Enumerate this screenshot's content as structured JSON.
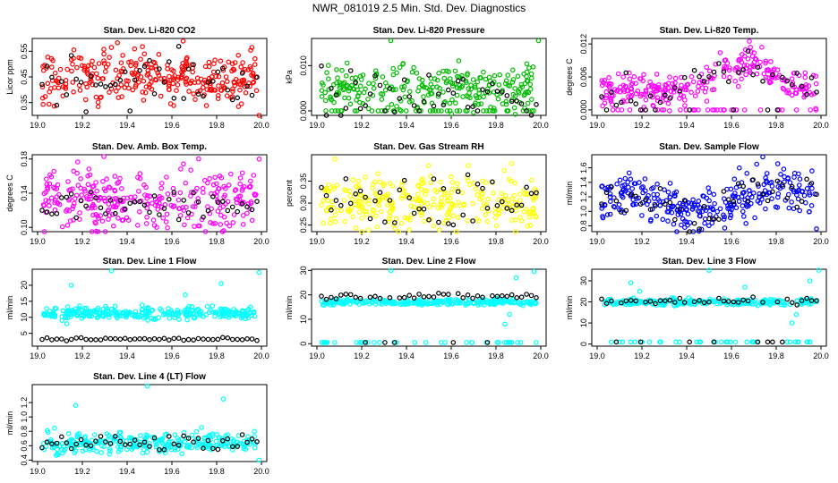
{
  "title": "NWR_081019  2.5 Min. Std. Dev. Diagnostics",
  "chart_data": [
    {
      "type": "scatter",
      "title": "Stan. Dev. Li-820 CO2",
      "ylabel": "Licor ppm",
      "color": "#ff0000",
      "xlim": [
        19.0,
        20.0
      ],
      "ylim": [
        0.3,
        0.6
      ],
      "xticks": [
        "19.0",
        "19.2",
        "19.4",
        "19.6",
        "19.8",
        "20.0"
      ],
      "yticks": [
        "0.35",
        "0.45",
        "0.55"
      ],
      "yticks_at": [
        0.35,
        0.45,
        0.55
      ],
      "center": 0.45,
      "spread": 0.05,
      "black_center": 0.44,
      "black_spread": 0.05,
      "trend": 0,
      "extreme_low": false,
      "outliers": [
        [
          19.65,
          0.59
        ],
        [
          19.99,
          0.3
        ]
      ]
    },
    {
      "type": "scatter",
      "title": "Stan. Dev. Li-820 Pressure",
      "ylabel": "kPa",
      "color": "#00bb00",
      "xlim": [
        19.0,
        20.0
      ],
      "ylim": [
        -0.001,
        0.016
      ],
      "xticks": [
        "19.0",
        "19.2",
        "19.4",
        "19.6",
        "19.8",
        "20.0"
      ],
      "yticks": [
        "0.000",
        "0.010"
      ],
      "yticks_at": [
        0.0,
        0.01
      ],
      "center": 0.005,
      "spread": 0.0025,
      "black_center": 0.003,
      "black_spread": 0.003,
      "trend": 0,
      "extreme_low": true,
      "low_value": 0.0,
      "outliers": [
        [
          19.33,
          0.0155
        ],
        [
          19.99,
          0.0155
        ]
      ]
    },
    {
      "type": "scatter",
      "title": "Stan. Dev. Li-820 Temp.",
      "ylabel": "degrees C",
      "color": "#ff00ff",
      "xlim": [
        19.0,
        20.0
      ],
      "ylim": [
        -0.001,
        0.013
      ],
      "xticks": [
        "19.0",
        "19.2",
        "19.4",
        "19.6",
        "19.8",
        "20.0"
      ],
      "yticks": [
        "0.000",
        "0.006",
        "0.012"
      ],
      "yticks_at": [
        0.0,
        0.006,
        0.012
      ],
      "center": 0.005,
      "spread": 0.0015,
      "black_center": 0.005,
      "black_spread": 0.0015,
      "trend": "hump",
      "extreme_low": true,
      "low_value": 0.0,
      "outliers": [
        [
          19.68,
          0.0125
        ]
      ]
    },
    {
      "type": "scatter",
      "title": "Stan. Dev. Amb. Box Temp.",
      "ylabel": "degrees C",
      "color": "#ff00ff",
      "xlim": [
        19.0,
        20.0
      ],
      "ylim": [
        0.095,
        0.185
      ],
      "xticks": [
        "19.0",
        "19.2",
        "19.4",
        "19.6",
        "19.8",
        "20.0"
      ],
      "yticks": [
        "0.10",
        "0.14",
        "0.18"
      ],
      "yticks_at": [
        0.1,
        0.14,
        0.18
      ],
      "center": 0.133,
      "spread": 0.017,
      "black_center": 0.125,
      "black_spread": 0.01,
      "trend": 0,
      "extreme_low": false,
      "outliers": [
        [
          19.99,
          0.18
        ]
      ]
    },
    {
      "type": "scatter",
      "title": "Stan. Dev. Gas Stream RH",
      "ylabel": "percent",
      "color": "#ffff00",
      "xlim": [
        19.0,
        20.0
      ],
      "ylim": [
        0.235,
        0.41
      ],
      "xticks": [
        "19.0",
        "19.2",
        "19.4",
        "19.6",
        "19.8",
        "20.0"
      ],
      "yticks": [
        "0.25",
        "0.30",
        "0.35"
      ],
      "yticks_at": [
        0.25,
        0.3,
        0.35
      ],
      "center": 0.3,
      "spread": 0.03,
      "black_center": 0.3,
      "black_spread": 0.03,
      "trend": 0,
      "extreme_low": false,
      "outliers": [
        [
          19.08,
          0.4
        ],
        [
          19.87,
          0.39
        ]
      ]
    },
    {
      "type": "scatter",
      "title": "Stan. Dev. Sample Flow",
      "ylabel": "ml/min",
      "color": "#0000ff",
      "xlim": [
        19.0,
        20.0
      ],
      "ylim": [
        0.72,
        1.78
      ],
      "xticks": [
        "19.0",
        "19.2",
        "19.4",
        "19.6",
        "19.8",
        "20.0"
      ],
      "yticks": [
        "0.8",
        "1.0",
        "1.2",
        "1.4",
        "1.6"
      ],
      "yticks_at": [
        0.8,
        1.0,
        1.2,
        1.4,
        1.6
      ],
      "center": 1.2,
      "spread": 0.15,
      "black_center": 1.2,
      "black_spread": 0.12,
      "trend": "dip",
      "extreme_low": false,
      "outliers": [
        [
          19.98,
          0.76
        ],
        [
          19.74,
          1.75
        ]
      ]
    },
    {
      "type": "scatter",
      "title": "Stan. Dev. Line 1 Flow",
      "ylabel": "ml/min",
      "color": "#00ffff",
      "xlim": [
        19.0,
        20.0
      ],
      "ylim": [
        1.0,
        25.0
      ],
      "xticks": [
        "19.0",
        "19.2",
        "19.4",
        "19.6",
        "19.8",
        "20.0"
      ],
      "yticks": [
        "5",
        "10",
        "15",
        "20"
      ],
      "yticks_at": [
        5,
        10,
        15,
        20
      ],
      "center": 11.3,
      "spread": 1.0,
      "black_center": 3.2,
      "black_spread": 0.2,
      "trend": 0,
      "extreme_low": false,
      "outliers": [
        [
          19.33,
          24.5
        ],
        [
          19.66,
          17.0
        ],
        [
          19.15,
          20.0
        ],
        [
          19.82,
          20.5
        ],
        [
          19.99,
          24.0
        ],
        [
          19.13,
          8.0
        ]
      ]
    },
    {
      "type": "scatter",
      "title": "Stan. Dev. Line 2 Flow",
      "ylabel": "ml/min",
      "color": "#00ffff",
      "xlim": [
        19.0,
        20.0
      ],
      "ylim": [
        -1.0,
        30.5
      ],
      "xticks": [
        "19.0",
        "19.2",
        "19.4",
        "19.6",
        "19.8",
        "20.0"
      ],
      "yticks": [
        "0",
        "10",
        "20",
        "30"
      ],
      "yticks_at": [
        0,
        10,
        20,
        30
      ],
      "center": 17.0,
      "spread": 0.6,
      "black_center": 19.5,
      "black_spread": 0.6,
      "trend": 0,
      "extreme_low": true,
      "low_value": 0.5,
      "outliers": [
        [
          19.33,
          30.0
        ],
        [
          19.89,
          27.0
        ],
        [
          19.97,
          29.5
        ],
        [
          19.84,
          8.0
        ],
        [
          19.86,
          12.0
        ]
      ]
    },
    {
      "type": "scatter",
      "title": "Stan. Dev. Line 3 Flow",
      "ylabel": "ml/min",
      "color": "#00ffff",
      "xlim": [
        19.0,
        20.0
      ],
      "ylim": [
        -1.0,
        35.5
      ],
      "xticks": [
        "19.0",
        "19.2",
        "19.4",
        "19.6",
        "19.8",
        "20.0"
      ],
      "yticks": [
        "0",
        "10",
        "20",
        "30"
      ],
      "yticks_at": [
        0,
        10,
        20,
        30
      ],
      "center": 20.0,
      "spread": 0.8,
      "black_center": 20.5,
      "black_spread": 0.8,
      "trend": 0,
      "extreme_low": true,
      "low_value": 1.0,
      "outliers": [
        [
          19.15,
          29.0
        ],
        [
          19.19,
          25.0
        ],
        [
          19.5,
          35.0
        ],
        [
          19.66,
          27.0
        ],
        [
          19.87,
          10.0
        ],
        [
          19.89,
          14.0
        ],
        [
          19.99,
          35.0
        ],
        [
          19.95,
          30.0
        ]
      ]
    },
    {
      "type": "scatter",
      "title": "Stan. Dev. Line 4 (LT) Flow",
      "ylabel": "ml/min",
      "color": "#00ffff",
      "xlim": [
        19.0,
        20.0
      ],
      "ylim": [
        0.38,
        1.45
      ],
      "xticks": [
        "19.0",
        "19.2",
        "19.4",
        "19.6",
        "19.8",
        "20.0"
      ],
      "yticks": [
        "0.4",
        "0.6",
        "0.8",
        "1.0",
        "1.2"
      ],
      "yticks_at": [
        0.4,
        0.6,
        0.8,
        1.0,
        1.2
      ],
      "center": 0.64,
      "spread": 0.07,
      "black_center": 0.63,
      "black_spread": 0.06,
      "trend": 0,
      "extreme_low": false,
      "outliers": [
        [
          19.49,
          1.43
        ],
        [
          19.17,
          1.16
        ],
        [
          19.83,
          1.25
        ],
        [
          19.99,
          0.4
        ]
      ]
    }
  ]
}
